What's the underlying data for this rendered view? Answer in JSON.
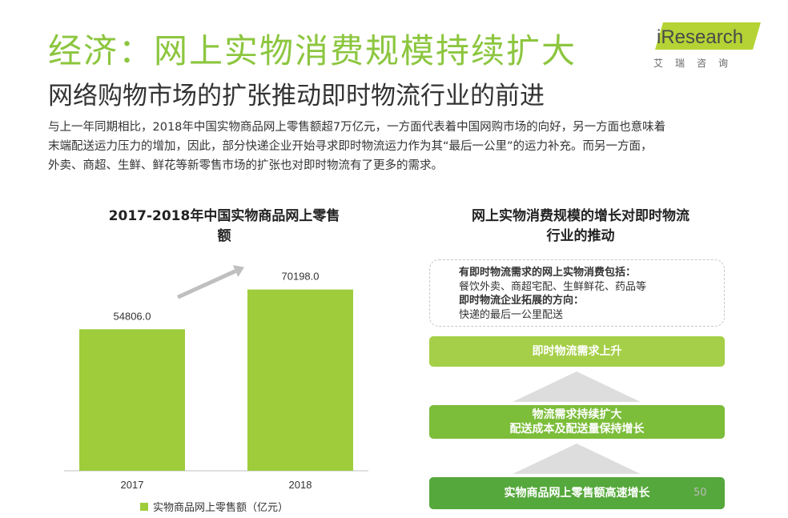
{
  "header": {
    "title": "经济：网上实物消费规模持续扩大",
    "subtitle": "网络购物市场的扩张推动即时物流行业的前进"
  },
  "logo": {
    "text": "iResearch",
    "cn": "艾瑞咨询"
  },
  "intro": {
    "lines": [
      "与上一年同期相比，2018年中国实物商品网上零售额超7万亿元，一方面代表着中国网购市场的向好，另一方面也意味着",
      "末端配送运力压力的增加，因此，部分快递企业开始寻求即时物流运力作为其“最后一公里”的运力补充。而另一方面，",
      "外卖、商超、生鲜、鲜花等新零售市场的扩张也对即时物流有了更多的需求。"
    ]
  },
  "chart_data": {
    "type": "bar",
    "title_lines": [
      "2017-2018年中国实物商品网上零售",
      "额"
    ],
    "categories": [
      "2017",
      "2018"
    ],
    "values": [
      54806.0,
      70198.0
    ],
    "value_labels": [
      "54806.0",
      "70198.0"
    ],
    "series": [
      {
        "name": "实物商品网上零售额（亿元）",
        "values": [
          54806.0,
          70198.0
        ]
      }
    ],
    "ylim": [
      0,
      80000
    ],
    "grid": false,
    "legend": "bottom",
    "colors": {
      "bar": "#9fcc3b",
      "arrow": "#bfbfbf"
    }
  },
  "flow": {
    "title_lines": [
      "网上实物消费规模的增长对即时物流",
      "行业的推动"
    ],
    "box": {
      "heading1": "有即时物流需求的网上实物消费包括：",
      "line1": "餐饮外卖、商超宅配、生鲜鲜花、药品等",
      "heading2": "即时物流企业拓展的方向：",
      "line2": "快递的最后一公里配送"
    },
    "steps": [
      {
        "lines": [
          "即时物流需求上升"
        ]
      },
      {
        "lines": [
          "物流需求持续扩大",
          "配送成本及配送量保持增长"
        ]
      },
      {
        "lines": [
          "实物商品网上零售额高速增长"
        ]
      }
    ]
  },
  "page_number": "50"
}
